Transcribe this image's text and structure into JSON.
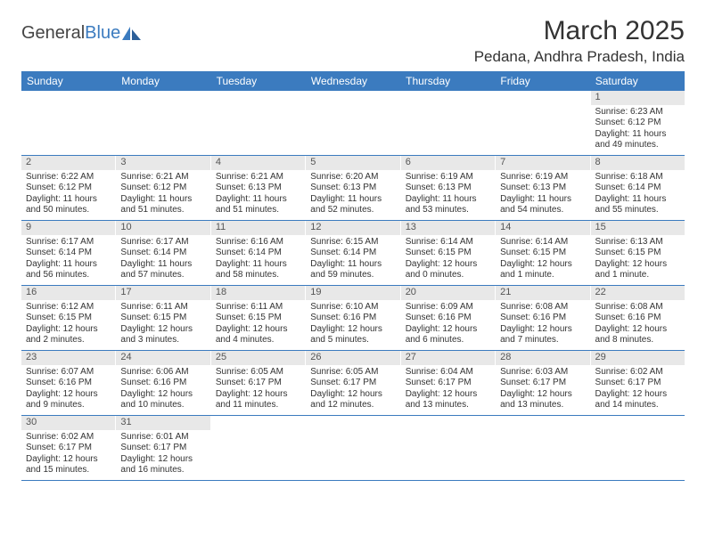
{
  "logo": {
    "text1": "General",
    "text2": "Blue"
  },
  "title": "March 2025",
  "location": "Pedana, Andhra Pradesh, India",
  "colors": {
    "header_bg": "#3b7bbf",
    "header_text": "#ffffff",
    "daynum_bg": "#e8e8e8",
    "row_border": "#3b7bbf",
    "text": "#333333"
  },
  "day_headers": [
    "Sunday",
    "Monday",
    "Tuesday",
    "Wednesday",
    "Thursday",
    "Friday",
    "Saturday"
  ],
  "weeks": [
    [
      {
        "empty": true
      },
      {
        "empty": true
      },
      {
        "empty": true
      },
      {
        "empty": true
      },
      {
        "empty": true
      },
      {
        "empty": true
      },
      {
        "n": "1",
        "sunrise": "Sunrise: 6:23 AM",
        "sunset": "Sunset: 6:12 PM",
        "daylight": "Daylight: 11 hours and 49 minutes."
      }
    ],
    [
      {
        "n": "2",
        "sunrise": "Sunrise: 6:22 AM",
        "sunset": "Sunset: 6:12 PM",
        "daylight": "Daylight: 11 hours and 50 minutes."
      },
      {
        "n": "3",
        "sunrise": "Sunrise: 6:21 AM",
        "sunset": "Sunset: 6:12 PM",
        "daylight": "Daylight: 11 hours and 51 minutes."
      },
      {
        "n": "4",
        "sunrise": "Sunrise: 6:21 AM",
        "sunset": "Sunset: 6:13 PM",
        "daylight": "Daylight: 11 hours and 51 minutes."
      },
      {
        "n": "5",
        "sunrise": "Sunrise: 6:20 AM",
        "sunset": "Sunset: 6:13 PM",
        "daylight": "Daylight: 11 hours and 52 minutes."
      },
      {
        "n": "6",
        "sunrise": "Sunrise: 6:19 AM",
        "sunset": "Sunset: 6:13 PM",
        "daylight": "Daylight: 11 hours and 53 minutes."
      },
      {
        "n": "7",
        "sunrise": "Sunrise: 6:19 AM",
        "sunset": "Sunset: 6:13 PM",
        "daylight": "Daylight: 11 hours and 54 minutes."
      },
      {
        "n": "8",
        "sunrise": "Sunrise: 6:18 AM",
        "sunset": "Sunset: 6:14 PM",
        "daylight": "Daylight: 11 hours and 55 minutes."
      }
    ],
    [
      {
        "n": "9",
        "sunrise": "Sunrise: 6:17 AM",
        "sunset": "Sunset: 6:14 PM",
        "daylight": "Daylight: 11 hours and 56 minutes."
      },
      {
        "n": "10",
        "sunrise": "Sunrise: 6:17 AM",
        "sunset": "Sunset: 6:14 PM",
        "daylight": "Daylight: 11 hours and 57 minutes."
      },
      {
        "n": "11",
        "sunrise": "Sunrise: 6:16 AM",
        "sunset": "Sunset: 6:14 PM",
        "daylight": "Daylight: 11 hours and 58 minutes."
      },
      {
        "n": "12",
        "sunrise": "Sunrise: 6:15 AM",
        "sunset": "Sunset: 6:14 PM",
        "daylight": "Daylight: 11 hours and 59 minutes."
      },
      {
        "n": "13",
        "sunrise": "Sunrise: 6:14 AM",
        "sunset": "Sunset: 6:15 PM",
        "daylight": "Daylight: 12 hours and 0 minutes."
      },
      {
        "n": "14",
        "sunrise": "Sunrise: 6:14 AM",
        "sunset": "Sunset: 6:15 PM",
        "daylight": "Daylight: 12 hours and 1 minute."
      },
      {
        "n": "15",
        "sunrise": "Sunrise: 6:13 AM",
        "sunset": "Sunset: 6:15 PM",
        "daylight": "Daylight: 12 hours and 1 minute."
      }
    ],
    [
      {
        "n": "16",
        "sunrise": "Sunrise: 6:12 AM",
        "sunset": "Sunset: 6:15 PM",
        "daylight": "Daylight: 12 hours and 2 minutes."
      },
      {
        "n": "17",
        "sunrise": "Sunrise: 6:11 AM",
        "sunset": "Sunset: 6:15 PM",
        "daylight": "Daylight: 12 hours and 3 minutes."
      },
      {
        "n": "18",
        "sunrise": "Sunrise: 6:11 AM",
        "sunset": "Sunset: 6:15 PM",
        "daylight": "Daylight: 12 hours and 4 minutes."
      },
      {
        "n": "19",
        "sunrise": "Sunrise: 6:10 AM",
        "sunset": "Sunset: 6:16 PM",
        "daylight": "Daylight: 12 hours and 5 minutes."
      },
      {
        "n": "20",
        "sunrise": "Sunrise: 6:09 AM",
        "sunset": "Sunset: 6:16 PM",
        "daylight": "Daylight: 12 hours and 6 minutes."
      },
      {
        "n": "21",
        "sunrise": "Sunrise: 6:08 AM",
        "sunset": "Sunset: 6:16 PM",
        "daylight": "Daylight: 12 hours and 7 minutes."
      },
      {
        "n": "22",
        "sunrise": "Sunrise: 6:08 AM",
        "sunset": "Sunset: 6:16 PM",
        "daylight": "Daylight: 12 hours and 8 minutes."
      }
    ],
    [
      {
        "n": "23",
        "sunrise": "Sunrise: 6:07 AM",
        "sunset": "Sunset: 6:16 PM",
        "daylight": "Daylight: 12 hours and 9 minutes."
      },
      {
        "n": "24",
        "sunrise": "Sunrise: 6:06 AM",
        "sunset": "Sunset: 6:16 PM",
        "daylight": "Daylight: 12 hours and 10 minutes."
      },
      {
        "n": "25",
        "sunrise": "Sunrise: 6:05 AM",
        "sunset": "Sunset: 6:17 PM",
        "daylight": "Daylight: 12 hours and 11 minutes."
      },
      {
        "n": "26",
        "sunrise": "Sunrise: 6:05 AM",
        "sunset": "Sunset: 6:17 PM",
        "daylight": "Daylight: 12 hours and 12 minutes."
      },
      {
        "n": "27",
        "sunrise": "Sunrise: 6:04 AM",
        "sunset": "Sunset: 6:17 PM",
        "daylight": "Daylight: 12 hours and 13 minutes."
      },
      {
        "n": "28",
        "sunrise": "Sunrise: 6:03 AM",
        "sunset": "Sunset: 6:17 PM",
        "daylight": "Daylight: 12 hours and 13 minutes."
      },
      {
        "n": "29",
        "sunrise": "Sunrise: 6:02 AM",
        "sunset": "Sunset: 6:17 PM",
        "daylight": "Daylight: 12 hours and 14 minutes."
      }
    ],
    [
      {
        "n": "30",
        "sunrise": "Sunrise: 6:02 AM",
        "sunset": "Sunset: 6:17 PM",
        "daylight": "Daylight: 12 hours and 15 minutes."
      },
      {
        "n": "31",
        "sunrise": "Sunrise: 6:01 AM",
        "sunset": "Sunset: 6:17 PM",
        "daylight": "Daylight: 12 hours and 16 minutes."
      },
      {
        "empty": true
      },
      {
        "empty": true
      },
      {
        "empty": true
      },
      {
        "empty": true
      },
      {
        "empty": true
      }
    ]
  ]
}
